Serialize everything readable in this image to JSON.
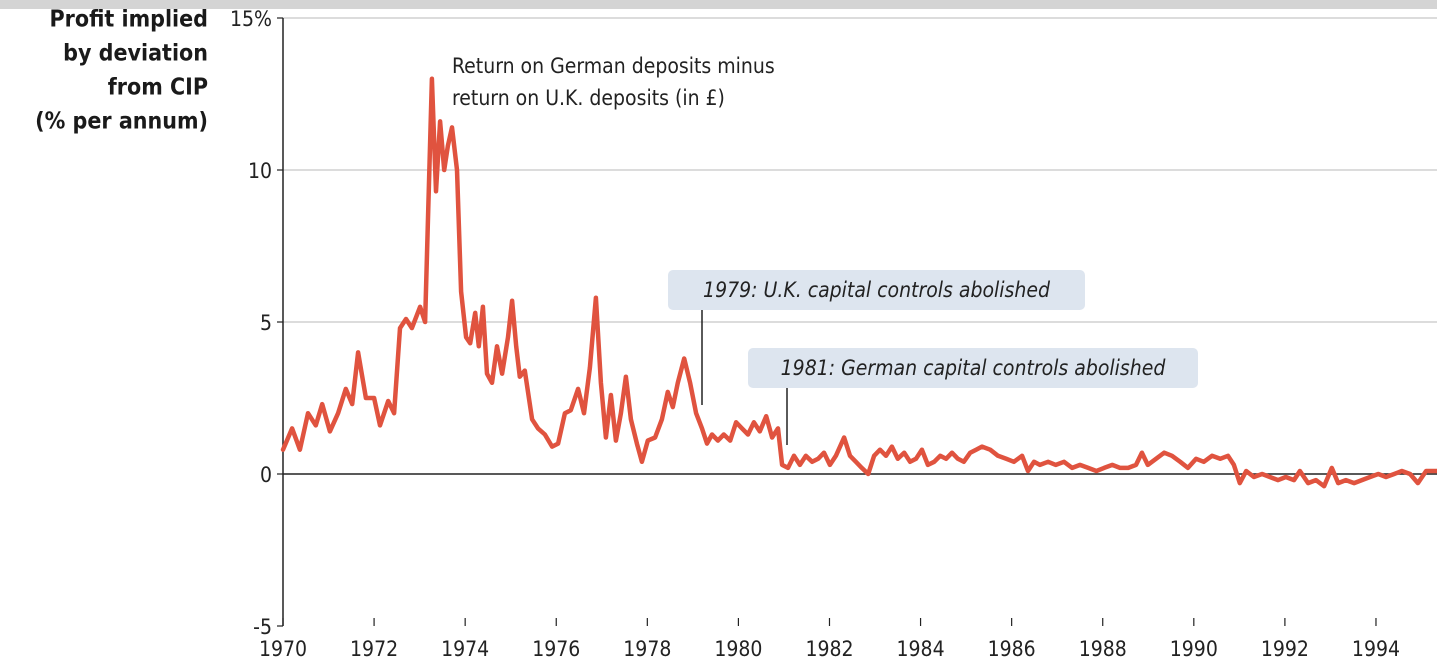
{
  "chart_data": {
    "type": "line",
    "ylabel": [
      "Profit implied",
      "by deviation",
      "from CIP",
      "(% per annum)"
    ],
    "annotations": [
      [
        "Return on German deposits minus",
        "return on U.K. deposits (in £)"
      ],
      "1979: U.K. capital controls abolished",
      "1981: German capital controls abolished"
    ],
    "xlim": [
      1970,
      1995.34
    ],
    "xticks": [
      1970,
      1972,
      1974,
      1976,
      1978,
      1980,
      1982,
      1984,
      1986,
      1988,
      1990,
      1992,
      1994
    ],
    "ylim": [
      -5,
      15
    ],
    "yticks": [
      -5,
      0,
      5,
      10,
      {
        "value": 15,
        "label": "15%"
      }
    ],
    "grid": true,
    "series": [
      {
        "color": "#e0533f",
        "x": [
          1970.0,
          1970.2,
          1970.37,
          1970.55,
          1970.72,
          1970.86,
          1971.03,
          1971.21,
          1971.38,
          1971.52,
          1971.65,
          1971.82,
          1972.0,
          1972.13,
          1972.31,
          1972.44,
          1972.57,
          1972.7,
          1972.83,
          1973.01,
          1973.12,
          1973.27,
          1973.36,
          1973.45,
          1973.54,
          1973.62,
          1973.71,
          1973.82,
          1973.91,
          1974.02,
          1974.11,
          1974.22,
          1974.3,
          1974.39,
          1974.48,
          1974.59,
          1974.7,
          1974.81,
          1974.94,
          1975.03,
          1975.12,
          1975.2,
          1975.31,
          1975.47,
          1975.6,
          1975.75,
          1975.91,
          1976.04,
          1976.19,
          1976.32,
          1976.48,
          1976.61,
          1976.74,
          1976.87,
          1976.98,
          1977.09,
          1977.2,
          1977.31,
          1977.42,
          1977.53,
          1977.64,
          1977.77,
          1977.88,
          1978.01,
          1978.17,
          1978.32,
          1978.45,
          1978.56,
          1978.67,
          1978.81,
          1978.94,
          1979.07,
          1979.2,
          1979.31,
          1979.42,
          1979.55,
          1979.68,
          1979.82,
          1979.95,
          1980.08,
          1980.21,
          1980.34,
          1980.47,
          1980.61,
          1980.74,
          1980.87,
          1980.96,
          1981.09,
          1981.22,
          1981.35,
          1981.48,
          1981.62,
          1981.75,
          1981.88,
          1982.01,
          1982.14,
          1982.32,
          1982.45,
          1982.58,
          1982.71,
          1982.85,
          1982.98,
          1983.11,
          1983.24,
          1983.37,
          1983.5,
          1983.64,
          1983.77,
          1983.9,
          1984.03,
          1984.16,
          1984.3,
          1984.43,
          1984.56,
          1984.69,
          1984.82,
          1984.95,
          1985.09,
          1985.22,
          1985.35,
          1985.53,
          1985.7,
          1985.88,
          1986.05,
          1986.23,
          1986.36,
          1986.49,
          1986.62,
          1986.8,
          1986.97,
          1987.15,
          1987.33,
          1987.5,
          1987.68,
          1987.86,
          1988.03,
          1988.21,
          1988.38,
          1988.56,
          1988.73,
          1988.86,
          1988.99,
          1989.17,
          1989.35,
          1989.52,
          1989.7,
          1989.87,
          1990.05,
          1990.22,
          1990.4,
          1990.58,
          1990.75,
          1990.88,
          1991.01,
          1991.15,
          1991.32,
          1991.5,
          1991.67,
          1991.85,
          1992.02,
          1992.2,
          1992.33,
          1992.51,
          1992.68,
          1992.86,
          1993.03,
          1993.17,
          1993.34,
          1993.52,
          1993.69,
          1993.87,
          1994.05,
          1994.22,
          1994.4,
          1994.57,
          1994.75,
          1994.92,
          1995.1,
          1995.34
        ],
        "values": [
          0.8,
          1.5,
          0.8,
          2.0,
          1.6,
          2.3,
          1.4,
          2.0,
          2.8,
          2.3,
          4.0,
          2.5,
          2.5,
          1.6,
          2.4,
          2.0,
          4.8,
          5.1,
          4.8,
          5.5,
          5.0,
          13.0,
          9.3,
          11.6,
          10.0,
          10.8,
          11.4,
          10.0,
          6.0,
          4.5,
          4.3,
          5.3,
          4.2,
          5.5,
          3.3,
          3.0,
          4.2,
          3.3,
          4.5,
          5.7,
          4.2,
          3.2,
          3.4,
          1.8,
          1.5,
          1.3,
          0.9,
          1.0,
          2.0,
          2.1,
          2.8,
          2.0,
          3.5,
          5.8,
          3.0,
          1.2,
          2.6,
          1.1,
          2.0,
          3.2,
          1.8,
          1.0,
          0.4,
          1.1,
          1.2,
          1.8,
          2.7,
          2.2,
          3.0,
          3.8,
          3.0,
          2.0,
          1.5,
          1.0,
          1.3,
          1.1,
          1.3,
          1.1,
          1.7,
          1.5,
          1.3,
          1.7,
          1.4,
          1.9,
          1.2,
          1.5,
          0.3,
          0.2,
          0.6,
          0.3,
          0.6,
          0.4,
          0.5,
          0.7,
          0.3,
          0.6,
          1.2,
          0.6,
          0.4,
          0.2,
          0.0,
          0.6,
          0.8,
          0.6,
          0.9,
          0.5,
          0.7,
          0.4,
          0.5,
          0.8,
          0.3,
          0.4,
          0.6,
          0.5,
          0.7,
          0.5,
          0.4,
          0.7,
          0.8,
          0.9,
          0.8,
          0.6,
          0.5,
          0.4,
          0.6,
          0.1,
          0.4,
          0.3,
          0.4,
          0.3,
          0.4,
          0.2,
          0.3,
          0.2,
          0.1,
          0.2,
          0.3,
          0.2,
          0.2,
          0.3,
          0.7,
          0.3,
          0.5,
          0.7,
          0.6,
          0.4,
          0.2,
          0.5,
          0.4,
          0.6,
          0.5,
          0.6,
          0.3,
          -0.3,
          0.1,
          -0.1,
          0.0,
          -0.1,
          -0.2,
          -0.1,
          -0.2,
          0.1,
          -0.3,
          -0.2,
          -0.4,
          0.2,
          -0.3,
          -0.2,
          -0.3,
          -0.2,
          -0.1,
          0.0,
          -0.1,
          0.0,
          0.1,
          0.0,
          -0.3,
          0.1,
          0.1
        ]
      }
    ]
  }
}
